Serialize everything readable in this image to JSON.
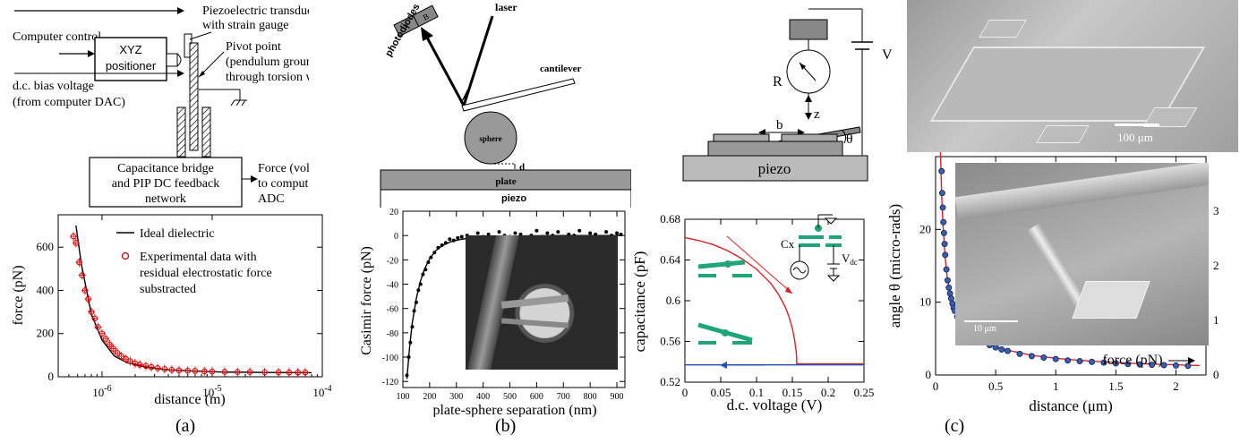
{
  "panel_a": {
    "schematic": {
      "computer_control": "Computer control",
      "positioner_line1": "XYZ",
      "positioner_line2": "positioner",
      "piezo_line1": "Piezoelectric transducer",
      "piezo_line2": "with strain gauge",
      "pivot_line1": "Pivot point",
      "pivot_line2": "(pendulum grounded",
      "pivot_line3": "through torsion wire)",
      "bias_line1": "d.c. bias voltage",
      "bias_line2": "(from computer DAC)",
      "cap_line1": "Capacitance bridge",
      "cap_line2": "and PIP DC feedback",
      "cap_line3": "network",
      "force_line1": "Force (voltage)",
      "force_line2": "to computer",
      "force_line3": "ADC"
    },
    "legend_ideal": "Ideal dielectric",
    "legend_exp_line1": "Experimental data with",
    "legend_exp_line2": "residual electrostatic force",
    "legend_exp_line3": "substracted",
    "caption": "(a)"
  },
  "panel_b": {
    "schematic": {
      "photodiodes": "photodiodes",
      "a": "A",
      "b": "B",
      "laser": "laser",
      "cantilever": "cantilever",
      "sphere": "sphere",
      "d": "d",
      "plate": "plate",
      "piezo": "piezo"
    },
    "caption": "(b)"
  },
  "panel_c": {
    "schematic": {
      "r": "R",
      "v": "V",
      "z": "z",
      "b": "b",
      "theta": "θ",
      "piezo": "piezo"
    },
    "inset_cx": "Cx",
    "inset_vdc": "V",
    "inset_vdc_sub": "dc",
    "scale_top": "100 μm",
    "scale_inset": "10 μm",
    "force_label": "force (pN)",
    "caption": "(c)"
  },
  "chart_data": [
    {
      "type": "scatter",
      "xscale": "log",
      "xlabel": "distance (m)",
      "ylabel": "force (pN)",
      "xlim": [
        4e-07,
        0.0001
      ],
      "ylim": [
        0,
        750
      ],
      "xticks": [
        "10",
        "10",
        "10"
      ],
      "xtick_exp": [
        "-6",
        "-5",
        "-4"
      ],
      "xtick_values": [
        1e-06,
        1e-05,
        0.0001
      ],
      "yticks": [
        "0",
        "200",
        "400",
        "600"
      ],
      "ytick_values": [
        0,
        200,
        400,
        600
      ],
      "series": [
        {
          "name": "Ideal dielectric",
          "style": "line",
          "color": "#000000",
          "x": [
            5.8e-07,
            6.5e-07,
            8e-07,
            1e-06,
            1.3e-06,
            1.7e-06,
            2.5e-06,
            4e-06,
            7e-06,
            1.2e-05,
            3e-05,
            8e-05
          ],
          "y": [
            700,
            520,
            290,
            170,
            95,
            65,
            45,
            32,
            26,
            22,
            20,
            19
          ]
        },
        {
          "name": "Experimental data with residual electrostatic force substracted",
          "style": "markers",
          "color": "#e00000",
          "x": [
            5.5e-07,
            5.8e-07,
            6.2e-07,
            6.6e-07,
            7e-07,
            7.5e-07,
            8e-07,
            8.6e-07,
            9.2e-07,
            1e-06,
            1.08e-06,
            1.17e-06,
            1.27e-06,
            1.38e-06,
            1.5e-06,
            1.65e-06,
            1.8e-06,
            2e-06,
            2.2e-06,
            2.5e-06,
            2.8e-06,
            3.2e-06,
            3.7e-06,
            4.3e-06,
            5e-06,
            6e-06,
            7e-06,
            8.5e-06,
            1e-05,
            1.3e-05,
            1.7e-05,
            2.2e-05,
            3e-05,
            4e-05,
            5e-05,
            6e-05,
            7e-05
          ],
          "y": [
            650,
            620,
            530,
            470,
            400,
            360,
            300,
            270,
            230,
            200,
            175,
            150,
            130,
            110,
            95,
            82,
            72,
            62,
            56,
            50,
            45,
            40,
            36,
            32,
            30,
            28,
            27,
            25,
            24,
            23,
            22,
            22,
            21,
            21,
            20,
            20,
            20
          ]
        }
      ]
    },
    {
      "type": "scatter",
      "xlabel": "plate-sphere separation (nm)",
      "ylabel": "Casimir force (pN)",
      "xlim": [
        100,
        930
      ],
      "ylim": [
        -125,
        20
      ],
      "xticks": [
        "100",
        "200",
        "300",
        "400",
        "500",
        "600",
        "700",
        "800",
        "900"
      ],
      "xtick_values": [
        100,
        200,
        300,
        400,
        500,
        600,
        700,
        800,
        900
      ],
      "yticks": [
        "20",
        "0",
        "-20",
        "-40",
        "-60",
        "-80",
        "-100",
        "-120"
      ],
      "ytick_values": [
        20,
        0,
        -20,
        -40,
        -60,
        -80,
        -100,
        -120
      ],
      "series": [
        {
          "name": "",
          "style": "line",
          "color": "#000000",
          "x": [
            115,
            125,
            135,
            150,
            165,
            180,
            200,
            225,
            250,
            280,
            320,
            380,
            450,
            550,
            700,
            920
          ],
          "y": [
            -118,
            -92,
            -72,
            -52,
            -38,
            -28,
            -19,
            -12,
            -8,
            -5,
            -3,
            -1.5,
            -0.8,
            -0.3,
            0,
            0
          ]
        },
        {
          "name": "",
          "style": "markers",
          "color": "#000000",
          "x": [
            115,
            122,
            128,
            135,
            142,
            150,
            158,
            166,
            175,
            185,
            195,
            205,
            218,
            232,
            246,
            260,
            275,
            290,
            305,
            320,
            340,
            360,
            380,
            400,
            420,
            440,
            460,
            480,
            500,
            520,
            540,
            560,
            580,
            600,
            620,
            640,
            660,
            680,
            700,
            720,
            740,
            760,
            780,
            800,
            820,
            840,
            860,
            880,
            900,
            915
          ],
          "y": [
            -115,
            -100,
            -88,
            -75,
            -62,
            -55,
            -45,
            -40,
            -32,
            -28,
            -22,
            -18,
            -14,
            -10,
            -8,
            -6,
            -3,
            -4,
            -2,
            -1,
            0,
            -3,
            2,
            -1,
            1,
            -2,
            3,
            0,
            -1,
            2,
            1,
            -3,
            0,
            4,
            -1,
            2,
            0,
            3,
            -2,
            1,
            0,
            4,
            -1,
            2,
            1,
            -2,
            3,
            0,
            2,
            1
          ]
        }
      ]
    },
    {
      "type": "line",
      "xlabel": "d.c. voltage (V)",
      "ylabel": "capacitance (pF)",
      "xlim": [
        0,
        0.25
      ],
      "ylim": [
        0.52,
        0.68
      ],
      "xticks": [
        "0",
        "0.05",
        "0.1",
        "0.15",
        "0.2",
        "0.25"
      ],
      "xtick_values": [
        0,
        0.05,
        0.1,
        0.15,
        0.2,
        0.25
      ],
      "yticks": [
        "0.68",
        "0.64",
        "0.6",
        "0.56",
        "0.52"
      ],
      "ytick_values": [
        0.68,
        0.64,
        0.6,
        0.56,
        0.52
      ],
      "series": [
        {
          "name": "",
          "color": "#e02020",
          "x": [
            0,
            0.02,
            0.04,
            0.06,
            0.08,
            0.1,
            0.12,
            0.13,
            0.14,
            0.145,
            0.15,
            0.153,
            0.155,
            0.156,
            0.156,
            0.17,
            0.2,
            0.25
          ],
          "y": [
            0.662,
            0.659,
            0.655,
            0.649,
            0.641,
            0.631,
            0.617,
            0.607,
            0.594,
            0.585,
            0.573,
            0.562,
            0.552,
            0.545,
            0.538,
            0.538,
            0.538,
            0.538
          ]
        },
        {
          "name": "",
          "color": "#2050c0",
          "x": [
            0,
            0.05,
            0.1,
            0.15,
            0.2,
            0.25
          ],
          "y": [
            0.537,
            0.537,
            0.537,
            0.537,
            0.537,
            0.537
          ]
        }
      ]
    },
    {
      "type": "scatter",
      "xlabel": "distance (μm)",
      "ylabel": "angle θ (micro-rads)",
      "xlim": [
        0,
        2.25
      ],
      "ylim": [
        0,
        30
      ],
      "xticks": [
        "0",
        "0.5",
        "1",
        "1.5",
        "2"
      ],
      "xtick_values": [
        0,
        0.5,
        1,
        1.5,
        2
      ],
      "yticks": [
        "0",
        "10",
        "20"
      ],
      "ytick_values": [
        0,
        10,
        20
      ],
      "yticks_right": [
        "0",
        "1",
        "2",
        "3"
      ],
      "ytick_right_values": [
        0,
        7.5,
        15,
        22.5
      ],
      "series": [
        {
          "name": "",
          "style": "line",
          "color": "#e02020",
          "x": [
            0.04,
            0.05,
            0.06,
            0.08,
            0.1,
            0.13,
            0.16,
            0.2,
            0.25,
            0.3,
            0.4,
            0.5,
            0.6,
            0.8,
            1.0,
            1.2,
            1.5,
            1.8,
            2.1,
            2.2
          ],
          "y": [
            31,
            25,
            21,
            16,
            13,
            10.5,
            9,
            7.6,
            6.5,
            5.7,
            4.6,
            3.9,
            3.4,
            2.7,
            2.3,
            2.0,
            1.7,
            1.5,
            1.35,
            1.3
          ]
        },
        {
          "name": "",
          "style": "markers",
          "color": "#3a5fb0",
          "x": [
            0.05,
            0.055,
            0.06,
            0.065,
            0.07,
            0.075,
            0.08,
            0.09,
            0.1,
            0.11,
            0.12,
            0.13,
            0.14,
            0.15,
            0.16,
            0.18,
            0.2,
            0.22,
            0.24,
            0.26,
            0.28,
            0.3,
            0.33,
            0.36,
            0.4,
            0.45,
            0.5,
            0.55,
            0.6,
            0.7,
            0.8,
            0.9,
            1.0,
            1.1,
            1.2,
            1.3,
            1.4,
            1.5,
            1.6,
            1.7,
            1.8,
            1.9,
            2.0,
            2.1
          ],
          "y": [
            28,
            25,
            23,
            21,
            19.5,
            18,
            16.5,
            14.5,
            13,
            12,
            11.2,
            10.5,
            9.8,
            9.2,
            8.8,
            8,
            7.5,
            7,
            6.6,
            6.2,
            5.9,
            5.6,
            5.2,
            4.9,
            4.5,
            4.1,
            3.8,
            3.5,
            3.3,
            2.9,
            2.6,
            2.4,
            2.2,
            2.0,
            1.9,
            1.8,
            1.7,
            1.6,
            1.5,
            1.45,
            1.4,
            1.35,
            1.3,
            1.25
          ]
        }
      ]
    }
  ]
}
